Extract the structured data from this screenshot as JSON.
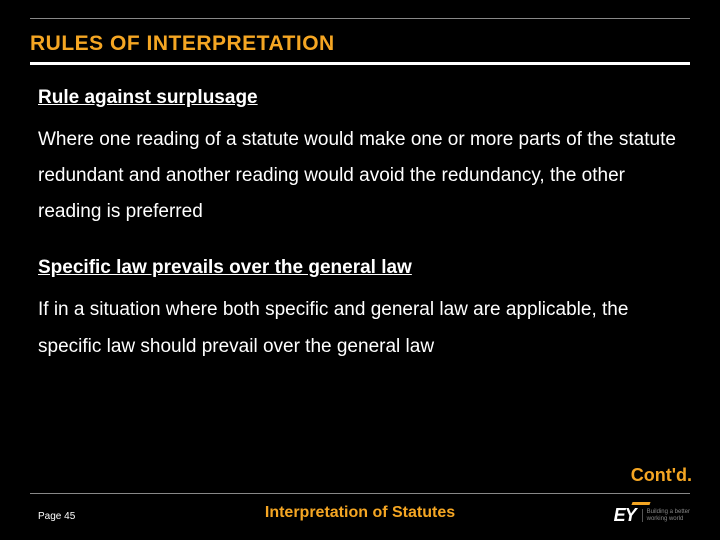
{
  "title": "RULES OF INTERPRETATION",
  "sections": [
    {
      "heading": "Rule against surplusage",
      "body": "Where one reading of a statute would make one or more parts of the statute redundant and another reading would avoid the redundancy, the other reading is preferred"
    },
    {
      "heading": "Specific law prevails over the general law",
      "body": "If in a situation where both specific and general law are applicable, the specific law should prevail over the general law"
    }
  ],
  "contd": "Cont'd.",
  "page_label": "Page 45",
  "footer_title": "Interpretation of Statutes",
  "logo": {
    "mark": "EY",
    "tag_line1": "Building a better",
    "tag_line2": "working world"
  },
  "colors": {
    "background": "#000000",
    "accent": "#f5a623",
    "text": "#ffffff",
    "rule": "#888888"
  }
}
